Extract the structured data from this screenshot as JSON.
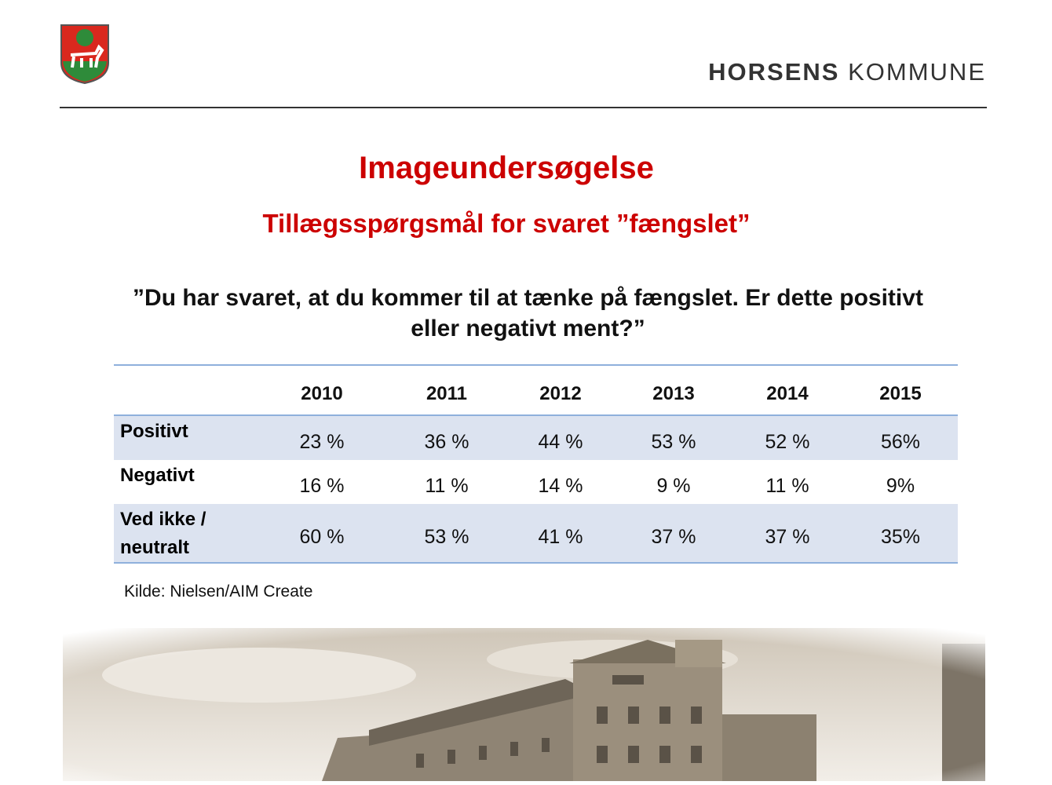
{
  "header": {
    "brand": "HORSENS",
    "brand_suffix": "KOMMUNE"
  },
  "title": "Imageundersøgelse",
  "subtitle": "Tillægsspørgsmål for svaret ”fængslet”",
  "question": "”Du har svaret, at du kommer til at tænke på fængslet. Er dette positivt eller negativt ment?”",
  "table": {
    "columns": [
      "2010",
      "2011",
      "2012",
      "2013",
      "2014",
      "2015"
    ],
    "rows": [
      [
        "Positivt",
        "23 %",
        "36 %",
        "44 %",
        "53 %",
        "52 %",
        "56%"
      ],
      [
        "Negativt",
        "16 %",
        "11 %",
        "14 %",
        "9 %",
        "11 %",
        "9%"
      ],
      [
        "Ved ikke / neutralt",
        "60 %",
        "53 %",
        "41 %",
        "37 %",
        "37 %",
        "35%"
      ]
    ]
  },
  "source": "Kilde: Nielsen/AIM Create"
}
